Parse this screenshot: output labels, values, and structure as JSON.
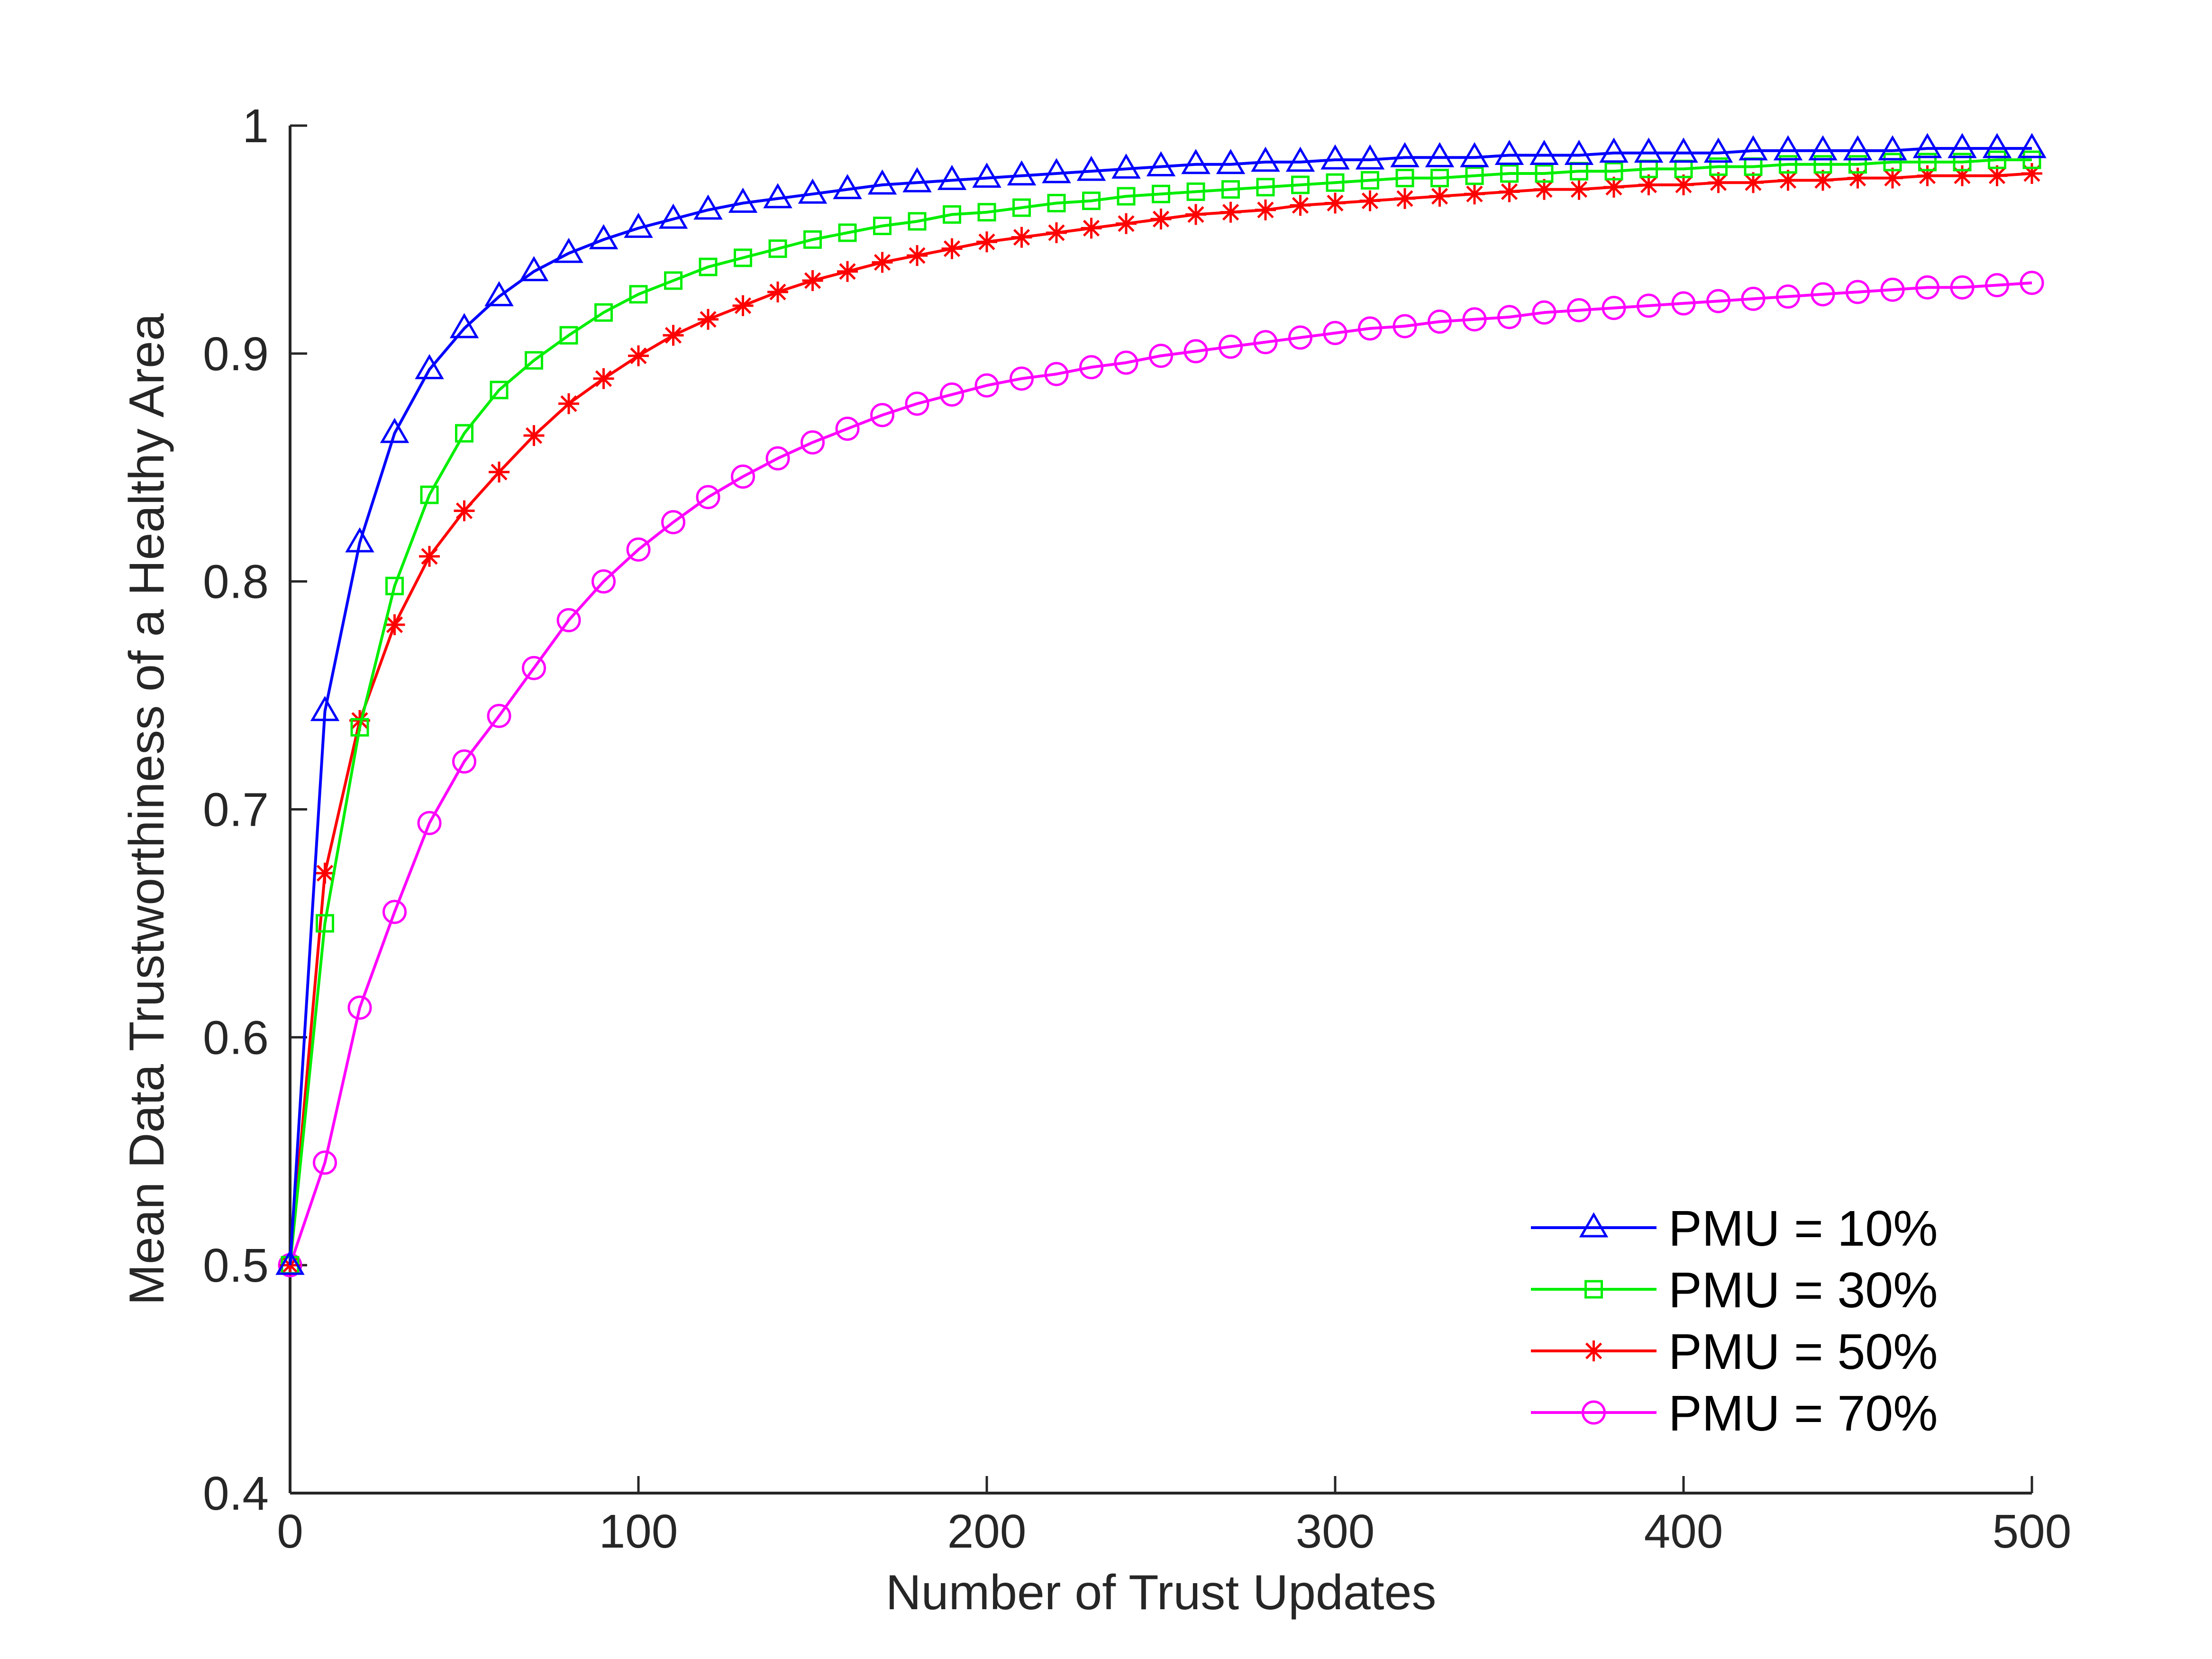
{
  "chart_data": {
    "type": "line",
    "title": "",
    "xlabel": "Number of Trust Updates",
    "ylabel": "Mean Data Trustworthiness of a Healthy Area",
    "xlim": [
      0,
      500
    ],
    "ylim": [
      0.4,
      1.0
    ],
    "xticks": [
      "0",
      "100",
      "200",
      "300",
      "400",
      "500"
    ],
    "yticks": [
      "0.4",
      "0.5",
      "0.6",
      "0.7",
      "0.8",
      "0.9",
      "1"
    ],
    "grid": false,
    "legend_position": "bottom-right",
    "x": [
      0,
      10,
      20,
      30,
      40,
      50,
      60,
      70,
      80,
      90,
      100,
      110,
      120,
      130,
      140,
      150,
      160,
      170,
      180,
      190,
      200,
      210,
      220,
      230,
      240,
      250,
      260,
      270,
      280,
      290,
      300,
      310,
      320,
      330,
      340,
      350,
      360,
      370,
      380,
      390,
      400,
      410,
      420,
      430,
      440,
      450,
      460,
      470,
      480,
      490,
      500
    ],
    "series": [
      {
        "name": "PMU = 10%",
        "color": "#0000ff",
        "marker": "triangle",
        "values": [
          0.5,
          0.743,
          0.817,
          0.865,
          0.893,
          0.911,
          0.925,
          0.936,
          0.944,
          0.95,
          0.955,
          0.959,
          0.963,
          0.966,
          0.968,
          0.97,
          0.972,
          0.974,
          0.975,
          0.976,
          0.977,
          0.978,
          0.979,
          0.98,
          0.981,
          0.982,
          0.983,
          0.983,
          0.984,
          0.984,
          0.985,
          0.985,
          0.986,
          0.986,
          0.986,
          0.987,
          0.987,
          0.987,
          0.988,
          0.988,
          0.988,
          0.988,
          0.989,
          0.989,
          0.989,
          0.989,
          0.989,
          0.99,
          0.99,
          0.99,
          0.99
        ]
      },
      {
        "name": "PMU = 30%",
        "color": "#00ee00",
        "marker": "square",
        "values": [
          0.5,
          0.65,
          0.736,
          0.798,
          0.838,
          0.865,
          0.884,
          0.897,
          0.908,
          0.918,
          0.926,
          0.932,
          0.938,
          0.942,
          0.946,
          0.95,
          0.953,
          0.956,
          0.958,
          0.961,
          0.962,
          0.964,
          0.966,
          0.967,
          0.969,
          0.97,
          0.971,
          0.972,
          0.973,
          0.974,
          0.975,
          0.976,
          0.977,
          0.977,
          0.978,
          0.979,
          0.979,
          0.98,
          0.98,
          0.981,
          0.981,
          0.982,
          0.982,
          0.983,
          0.983,
          0.983,
          0.984,
          0.984,
          0.984,
          0.985,
          0.985
        ]
      },
      {
        "name": "PMU = 50%",
        "color": "#ff0000",
        "marker": "asterisk",
        "values": [
          0.5,
          0.672,
          0.739,
          0.781,
          0.811,
          0.831,
          0.848,
          0.864,
          0.878,
          0.889,
          0.899,
          0.908,
          0.915,
          0.921,
          0.927,
          0.932,
          0.936,
          0.94,
          0.943,
          0.946,
          0.949,
          0.951,
          0.953,
          0.955,
          0.957,
          0.959,
          0.961,
          0.962,
          0.963,
          0.965,
          0.966,
          0.967,
          0.968,
          0.969,
          0.97,
          0.971,
          0.972,
          0.972,
          0.973,
          0.974,
          0.974,
          0.975,
          0.975,
          0.976,
          0.976,
          0.977,
          0.977,
          0.978,
          0.978,
          0.978,
          0.979
        ]
      },
      {
        "name": "PMU = 70%",
        "color": "#ff00ff",
        "marker": "circle",
        "values": [
          0.5,
          0.545,
          0.613,
          0.655,
          0.694,
          0.721,
          0.741,
          0.762,
          0.783,
          0.8,
          0.814,
          0.826,
          0.837,
          0.846,
          0.854,
          0.861,
          0.867,
          0.873,
          0.878,
          0.882,
          0.886,
          0.889,
          0.891,
          0.894,
          0.896,
          0.899,
          0.901,
          0.903,
          0.905,
          0.907,
          0.909,
          0.911,
          0.912,
          0.914,
          0.915,
          0.916,
          0.918,
          0.919,
          0.92,
          0.921,
          0.922,
          0.923,
          0.924,
          0.925,
          0.926,
          0.927,
          0.928,
          0.929,
          0.929,
          0.93,
          0.931
        ]
      }
    ]
  }
}
